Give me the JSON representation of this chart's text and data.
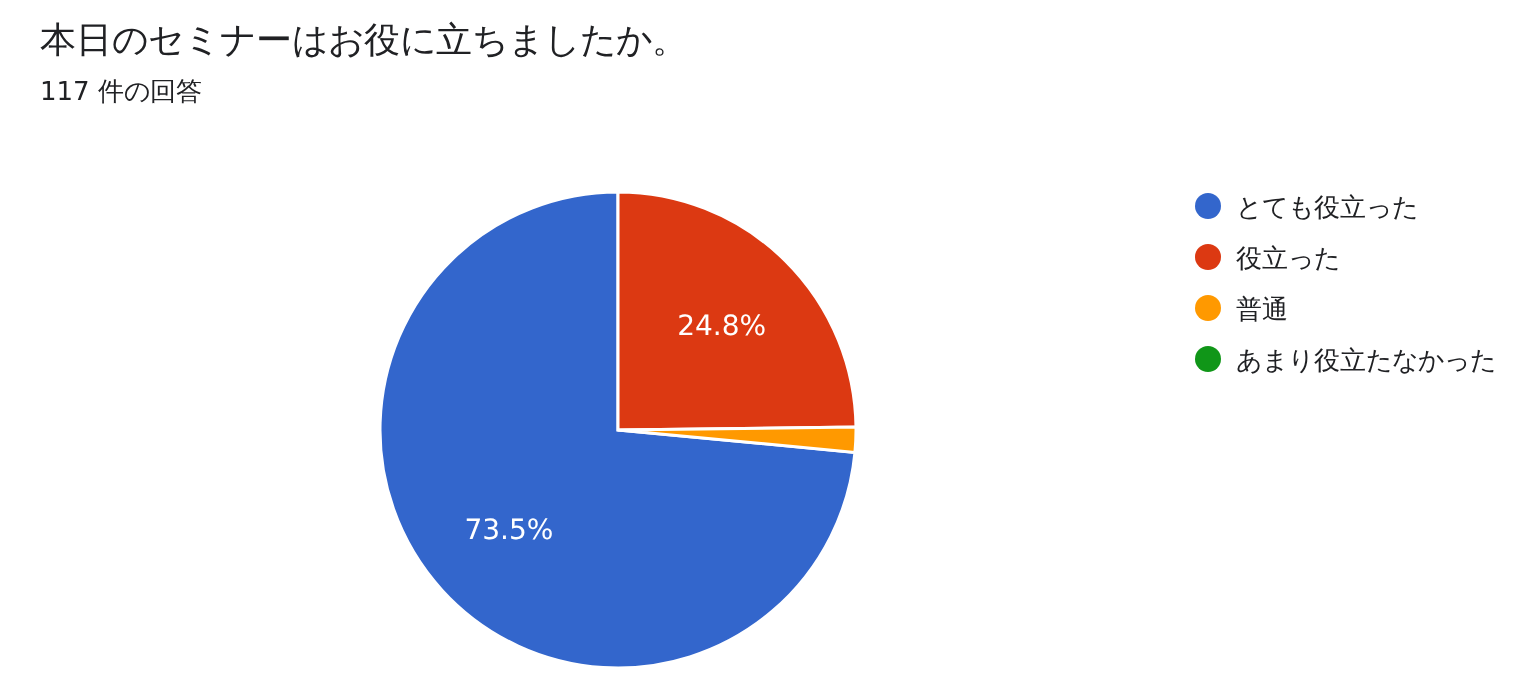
{
  "chart_data": {
    "type": "pie",
    "title": "本日のセミナーはお役に立ちましたか。",
    "subtitle": "117 件の回答",
    "categories": [
      "とても役立った",
      "役立った",
      "普通",
      "あまり役立たなかった"
    ],
    "values": [
      73.5,
      24.8,
      1.7,
      0
    ],
    "value_labels": [
      "73.5%",
      "24.8%",
      null,
      null
    ],
    "colors": [
      "#3366cc",
      "#dc3912",
      "#ff9900",
      "#109618"
    ],
    "legend": "right"
  }
}
